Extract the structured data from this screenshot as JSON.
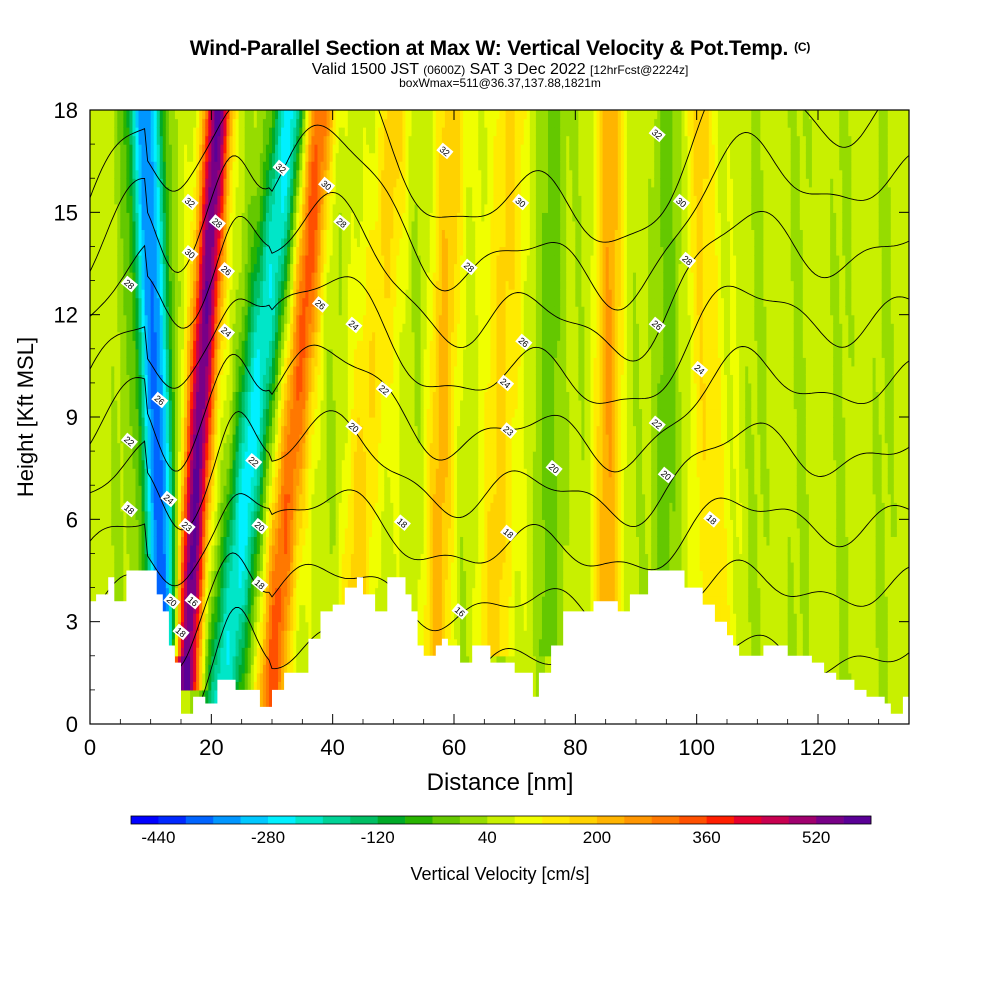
{
  "title": {
    "main": "Wind-Parallel Section at Max W: Vertical Velocity & Pot.Temp.",
    "copyright": "(C)",
    "valid_a": "Valid 1500 JST ",
    "valid_utc": "(0600Z)",
    "valid_b": " SAT 3 Dec 2022 ",
    "forecast": "[12hrFcst@2224z]",
    "box": "boxWmax=511@36.37,137.88,1821m"
  },
  "chart_data": {
    "type": "heatmap",
    "xlabel": "Distance [nm]",
    "ylabel": "Height [Kft MSL]",
    "xlim": [
      0,
      135
    ],
    "ylim": [
      0,
      18
    ],
    "xticks": [
      0,
      20,
      40,
      60,
      80,
      100,
      120
    ],
    "yticks": [
      0,
      3,
      6,
      9,
      12,
      15,
      18
    ],
    "colorbar": {
      "label": "Vertical Velocity [cm/s]",
      "ticks": [
        -440,
        -280,
        -120,
        40,
        200,
        360,
        520
      ],
      "min": -480,
      "max": 600,
      "step": 40,
      "colors": [
        "#0000ff",
        "#0028ff",
        "#0064ff",
        "#0096ff",
        "#00c8ff",
        "#00f0ff",
        "#00e6c8",
        "#00d296",
        "#00be64",
        "#00aa28",
        "#28b400",
        "#64c800",
        "#96dc00",
        "#c8f000",
        "#f0ff00",
        "#ffeb00",
        "#ffd200",
        "#ffb400",
        "#ff9600",
        "#ff7800",
        "#ff5000",
        "#ff1e00",
        "#e6002d",
        "#c80050",
        "#a0006e",
        "#780087",
        "#5a0096"
      ]
    },
    "terrain_kft": [
      [
        0,
        0
      ],
      [
        0,
        3.6
      ],
      [
        1,
        3.6
      ],
      [
        1,
        3.8
      ],
      [
        3,
        3.8
      ],
      [
        3,
        4.3
      ],
      [
        4,
        4.3
      ],
      [
        4,
        3.6
      ],
      [
        6,
        3.6
      ],
      [
        6,
        4.5
      ],
      [
        11,
        4.5
      ],
      [
        11,
        3.8
      ],
      [
        12,
        3.8
      ],
      [
        12,
        3.3
      ],
      [
        13,
        3.3
      ],
      [
        13,
        2.3
      ],
      [
        14,
        2.3
      ],
      [
        14,
        1.8
      ],
      [
        15,
        1.8
      ],
      [
        15,
        0.3
      ],
      [
        17,
        0.3
      ],
      [
        17,
        0.8
      ],
      [
        19,
        0.8
      ],
      [
        19,
        0.6
      ],
      [
        21,
        0.6
      ],
      [
        21,
        1.3
      ],
      [
        24,
        1.3
      ],
      [
        24,
        1.0
      ],
      [
        28,
        1.0
      ],
      [
        28,
        0.5
      ],
      [
        30,
        0.5
      ],
      [
        30,
        1.0
      ],
      [
        32,
        1.0
      ],
      [
        32,
        1.5
      ],
      [
        36,
        1.5
      ],
      [
        36,
        2.5
      ],
      [
        38,
        2.5
      ],
      [
        38,
        3.3
      ],
      [
        40,
        3.3
      ],
      [
        40,
        3.5
      ],
      [
        42,
        3.5
      ],
      [
        42,
        4.0
      ],
      [
        44,
        4.0
      ],
      [
        44,
        4.3
      ],
      [
        45,
        4.3
      ],
      [
        45,
        3.8
      ],
      [
        47,
        3.8
      ],
      [
        47,
        3.3
      ],
      [
        49,
        3.3
      ],
      [
        49,
        4.3
      ],
      [
        52,
        4.3
      ],
      [
        52,
        3.8
      ],
      [
        53,
        3.8
      ],
      [
        53,
        3.3
      ],
      [
        54,
        3.3
      ],
      [
        54,
        2.3
      ],
      [
        55,
        2.3
      ],
      [
        55,
        2.0
      ],
      [
        57,
        2.0
      ],
      [
        57,
        2.3
      ],
      [
        58,
        2.3
      ],
      [
        58,
        2.5
      ],
      [
        59,
        2.5
      ],
      [
        59,
        2.3
      ],
      [
        61,
        2.3
      ],
      [
        61,
        1.8
      ],
      [
        63,
        1.8
      ],
      [
        63,
        2.3
      ],
      [
        66,
        2.3
      ],
      [
        66,
        1.8
      ],
      [
        70,
        1.8
      ],
      [
        70,
        1.5
      ],
      [
        73,
        1.5
      ],
      [
        73,
        0.8
      ],
      [
        74,
        0.8
      ],
      [
        74,
        1.5
      ],
      [
        76,
        1.5
      ],
      [
        76,
        2.3
      ],
      [
        78,
        2.3
      ],
      [
        78,
        3.3
      ],
      [
        80,
        3.3
      ],
      [
        80,
        3.3
      ],
      [
        83,
        3.3
      ],
      [
        83,
        3.6
      ],
      [
        87,
        3.6
      ],
      [
        87,
        3.3
      ],
      [
        89,
        3.3
      ],
      [
        89,
        3.8
      ],
      [
        92,
        3.8
      ],
      [
        92,
        4.5
      ],
      [
        98,
        4.5
      ],
      [
        98,
        4.0
      ],
      [
        101,
        4.0
      ],
      [
        101,
        3.5
      ],
      [
        103,
        3.5
      ],
      [
        103,
        3.0
      ],
      [
        105,
        3.0
      ],
      [
        105,
        2.6
      ],
      [
        106,
        2.6
      ],
      [
        106,
        2.3
      ],
      [
        107,
        2.3
      ],
      [
        107,
        2.0
      ],
      [
        111,
        2.0
      ],
      [
        111,
        2.3
      ],
      [
        115,
        2.3
      ],
      [
        115,
        2.0
      ],
      [
        119,
        2.0
      ],
      [
        119,
        1.8
      ],
      [
        121,
        1.8
      ],
      [
        121,
        1.5
      ],
      [
        123,
        1.5
      ],
      [
        123,
        1.3
      ],
      [
        126,
        1.3
      ],
      [
        126,
        1.0
      ],
      [
        128,
        1.0
      ],
      [
        128,
        0.8
      ],
      [
        131,
        0.8
      ],
      [
        131,
        0.6
      ],
      [
        132,
        0.6
      ],
      [
        132,
        0.3
      ],
      [
        134,
        0.3
      ],
      [
        134,
        0.8
      ],
      [
        135,
        0.8
      ],
      [
        135,
        0
      ]
    ],
    "w_bands": [
      {
        "x0": 12,
        "x1": 9,
        "y0": 3,
        "y1": 18,
        "w": -430,
        "spread": 2.6
      },
      {
        "x0": 16,
        "x1": 21,
        "y0": 2,
        "y1": 18,
        "w": 520,
        "spread": 2.2
      },
      {
        "x0": 22,
        "x1": 33,
        "y0": 1,
        "y1": 18,
        "w": -300,
        "spread": 3.0
      },
      {
        "x0": 30,
        "x1": 38,
        "y0": 1,
        "y1": 18,
        "w": 280,
        "spread": 2.6
      },
      {
        "x0": 44,
        "x1": 50,
        "y0": 4,
        "y1": 18,
        "w": 120,
        "spread": 3.2
      },
      {
        "x0": 57,
        "x1": 60,
        "y0": 3,
        "y1": 18,
        "w": 150,
        "spread": 2.6
      },
      {
        "x0": 67,
        "x1": 69,
        "y0": 3,
        "y1": 18,
        "w": 140,
        "spread": 2.6
      },
      {
        "x0": 85,
        "x1": 86,
        "y0": 3,
        "y1": 18,
        "w": 170,
        "spread": 2.6
      },
      {
        "x0": 103,
        "x1": 101,
        "y0": 3,
        "y1": 18,
        "w": 120,
        "spread": 2.6
      },
      {
        "x0": 94,
        "x1": 95,
        "y0": 4,
        "y1": 18,
        "w": -60,
        "spread": 2.4
      },
      {
        "x0": 76,
        "x1": 77,
        "y0": 3,
        "y1": 18,
        "w": -60,
        "spread": 2.4
      }
    ],
    "theta_contours": [
      16,
      18,
      20,
      22,
      24,
      26,
      28,
      30,
      32
    ],
    "theta_labels": [
      {
        "text": "28",
        "x": 6.5,
        "y": 12.9
      },
      {
        "text": "26",
        "x": 11.5,
        "y": 9.5
      },
      {
        "text": "22",
        "x": 6.5,
        "y": 8.3
      },
      {
        "text": "18",
        "x": 6.5,
        "y": 6.3
      },
      {
        "text": "24",
        "x": 13.0,
        "y": 6.6
      },
      {
        "text": "20",
        "x": 13.5,
        "y": 3.6
      },
      {
        "text": "18",
        "x": 15.0,
        "y": 2.7
      },
      {
        "text": "16",
        "x": 17.0,
        "y": 3.6
      },
      {
        "text": "23",
        "x": 16.0,
        "y": 5.8
      },
      {
        "text": "32",
        "x": 16.5,
        "y": 15.3
      },
      {
        "text": "30",
        "x": 16.5,
        "y": 13.8
      },
      {
        "text": "28",
        "x": 21.0,
        "y": 14.7
      },
      {
        "text": "26",
        "x": 22.5,
        "y": 13.3
      },
      {
        "text": "24",
        "x": 22.5,
        "y": 11.5
      },
      {
        "text": "22",
        "x": 27.0,
        "y": 7.7
      },
      {
        "text": "20",
        "x": 28.0,
        "y": 5.8
      },
      {
        "text": "18",
        "x": 28.0,
        "y": 4.1
      },
      {
        "text": "32",
        "x": 31.5,
        "y": 16.3
      },
      {
        "text": "30",
        "x": 39.0,
        "y": 15.8
      },
      {
        "text": "28",
        "x": 41.5,
        "y": 14.7
      },
      {
        "text": "26",
        "x": 38.0,
        "y": 12.3
      },
      {
        "text": "24",
        "x": 43.5,
        "y": 11.7
      },
      {
        "text": "22",
        "x": 48.5,
        "y": 9.8
      },
      {
        "text": "20",
        "x": 43.5,
        "y": 8.7
      },
      {
        "text": "18",
        "x": 51.5,
        "y": 5.9
      },
      {
        "text": "32",
        "x": 58.5,
        "y": 16.8
      },
      {
        "text": "28",
        "x": 62.5,
        "y": 13.4
      },
      {
        "text": "30",
        "x": 71.0,
        "y": 15.3
      },
      {
        "text": "26",
        "x": 71.5,
        "y": 11.2
      },
      {
        "text": "24",
        "x": 68.5,
        "y": 10.0
      },
      {
        "text": "23",
        "x": 69.0,
        "y": 8.6
      },
      {
        "text": "20",
        "x": 76.5,
        "y": 7.5
      },
      {
        "text": "18",
        "x": 69.0,
        "y": 5.6
      },
      {
        "text": "16",
        "x": 61.0,
        "y": 3.3
      },
      {
        "text": "32",
        "x": 93.5,
        "y": 17.3
      },
      {
        "text": "30",
        "x": 97.5,
        "y": 15.3
      },
      {
        "text": "28",
        "x": 98.5,
        "y": 13.6
      },
      {
        "text": "26",
        "x": 93.5,
        "y": 11.7
      },
      {
        "text": "24",
        "x": 100.5,
        "y": 10.4
      },
      {
        "text": "22",
        "x": 93.5,
        "y": 8.8
      },
      {
        "text": "20",
        "x": 95.0,
        "y": 7.3
      },
      {
        "text": "18",
        "x": 102.5,
        "y": 6.0
      }
    ]
  }
}
